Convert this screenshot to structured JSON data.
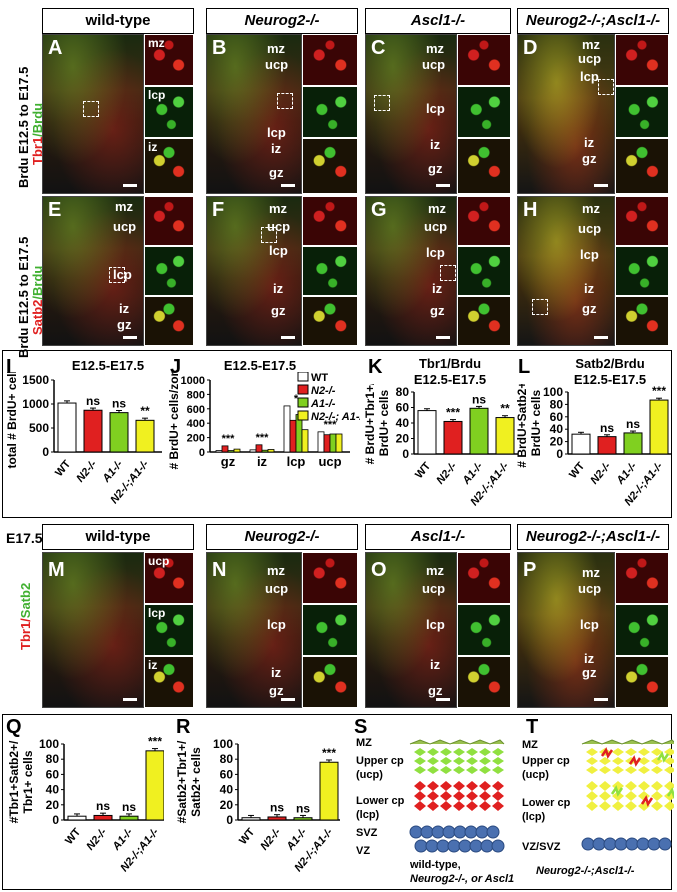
{
  "headers_top": [
    "wild-type",
    "Neurog2-/-",
    "Ascl1-/-",
    "Neurog2-/-;Ascl1-/-"
  ],
  "headers_mid": [
    "wild-type",
    "Neurog2-/-",
    "Ascl1-/-",
    "Neurog2-/-;Ascl1-/-"
  ],
  "row_labels": {
    "r1": "Brdu E12.5 to E17.5",
    "r1b": "Tbr1/Brdu",
    "r2": "Brdu E12.5 to E17.5",
    "r2b": "Satb2/Brdu",
    "r3_age": "E17.5",
    "r3a": "Tbr1/",
    "r3b": "Satb2"
  },
  "panel_letters_top": [
    "A",
    "B",
    "C",
    "D",
    "E",
    "F",
    "G",
    "H"
  ],
  "panel_letters_mid": [
    "M",
    "N",
    "O",
    "P"
  ],
  "zones": {
    "mz": "mz",
    "ucp": "ucp",
    "lcp": "lcp",
    "iz": "iz",
    "gz": "gz"
  },
  "charts": {
    "I": {
      "letter": "I",
      "title": "E12.5-E17.5",
      "ylabel": "total # BrdU+ cells"
    },
    "J": {
      "letter": "J",
      "title": "E12.5-E17.5",
      "ylabel": "# BrdU+ cells/zone"
    },
    "K": {
      "letter": "K",
      "title1": "Tbr1/Brdu",
      "title2": "E12.5-E17.5",
      "ylabel1": "# BrdU+Tbr1+/",
      "ylabel2": "BrdU+ cells"
    },
    "L": {
      "letter": "L",
      "title1": "Satb2/Brdu",
      "title2": "E12.5-E17.5",
      "ylabel1": "# BrdU+Satb2+/",
      "ylabel2": "BrdU+ cells"
    },
    "Q": {
      "letter": "Q",
      "ylabel1": "#Tbr1+Satb2+/",
      "ylabel2": "Tbr1+ cells"
    },
    "R": {
      "letter": "R",
      "ylabel1": "#Satb2+Tbr1+/",
      "ylabel2": "Satb2+ cells"
    }
  },
  "chart_data": [
    {
      "id": "I",
      "type": "bar",
      "categories": [
        "WT",
        "N2-/-",
        "A1-/-",
        "N2-/-;A1-/-"
      ],
      "values": [
        1020,
        870,
        820,
        660
      ],
      "ylim": [
        0,
        1500
      ],
      "yticks": [
        0,
        500,
        1000,
        1500
      ],
      "annotations": [
        "",
        "ns",
        "ns",
        "**"
      ],
      "colors": [
        "#ffffff",
        "#e02020",
        "#80d020",
        "#f0f020"
      ]
    },
    {
      "id": "J",
      "type": "bar",
      "categories": [
        "gz",
        "iz",
        "lcp",
        "ucp"
      ],
      "series": [
        {
          "name": "WT",
          "values": [
            20,
            30,
            640,
            280
          ]
        },
        {
          "name": "N2-/-",
          "values": [
            85,
            100,
            440,
            240
          ]
        },
        {
          "name": "A1-/-",
          "values": [
            20,
            25,
            520,
            250
          ]
        },
        {
          "name": "N2-/-; A1-/-",
          "values": [
            40,
            35,
            310,
            250
          ]
        }
      ],
      "ylim": [
        0,
        1000
      ],
      "yticks": [
        0,
        200,
        400,
        600,
        800,
        1000
      ],
      "annotations": [
        "***",
        "***",
        "*",
        "***"
      ],
      "colors": [
        "#ffffff",
        "#e02020",
        "#80d020",
        "#f0f020"
      ]
    },
    {
      "id": "K",
      "type": "bar",
      "categories": [
        "WT",
        "N2-/-",
        "A1-/-",
        "N2-/-;A1-/-"
      ],
      "values": [
        56,
        42,
        59,
        47
      ],
      "ylim": [
        0,
        80
      ],
      "yticks": [
        0,
        20,
        40,
        60,
        80
      ],
      "annotations": [
        "",
        "***",
        "ns",
        "**"
      ],
      "colors": [
        "#ffffff",
        "#e02020",
        "#80d020",
        "#f0f020"
      ]
    },
    {
      "id": "L",
      "type": "bar",
      "categories": [
        "WT",
        "N2-/-",
        "A1-/-",
        "N2-/-;A1-/-"
      ],
      "values": [
        32,
        28,
        34,
        87
      ],
      "ylim": [
        0,
        100
      ],
      "yticks": [
        0,
        20,
        40,
        60,
        80,
        100
      ],
      "annotations": [
        "",
        "ns",
        "ns",
        "***"
      ],
      "colors": [
        "#ffffff",
        "#e02020",
        "#80d020",
        "#f0f020"
      ]
    },
    {
      "id": "Q",
      "type": "bar",
      "categories": [
        "WT",
        "N2-/-",
        "A1-/-",
        "N2-/-;A1-/-"
      ],
      "values": [
        5,
        6,
        5,
        91
      ],
      "ylim": [
        0,
        100
      ],
      "yticks": [
        0,
        20,
        40,
        60,
        80,
        100
      ],
      "annotations": [
        "",
        "ns",
        "ns",
        "***"
      ],
      "colors": [
        "#ffffff",
        "#e02020",
        "#80d020",
        "#f0f020"
      ]
    },
    {
      "id": "R",
      "type": "bar",
      "categories": [
        "WT",
        "N2-/-",
        "A1-/-",
        "N2-/-;A1-/-"
      ],
      "values": [
        3,
        4,
        3,
        76
      ],
      "ylim": [
        0,
        100
      ],
      "yticks": [
        0,
        20,
        40,
        60,
        80,
        100
      ],
      "annotations": [
        "",
        "ns",
        "ns",
        "***"
      ],
      "colors": [
        "#ffffff",
        "#e02020",
        "#80d020",
        "#f0f020"
      ]
    }
  ],
  "schematic_S": {
    "letter": "S",
    "labels": [
      "MZ",
      "Upper cp",
      "(ucp)",
      "Lower cp",
      "(lcp)",
      "SVZ",
      "VZ"
    ],
    "caption": [
      "wild-type,",
      "Neurog2-/-, or Ascl1-/-"
    ]
  },
  "schematic_T": {
    "letter": "T",
    "labels": [
      "MZ",
      "Upper cp",
      "(ucp)",
      "Lower cp",
      "(lcp)",
      "VZ/SVZ"
    ],
    "caption": [
      "Neurog2-/-;Ascl1-/-"
    ]
  }
}
